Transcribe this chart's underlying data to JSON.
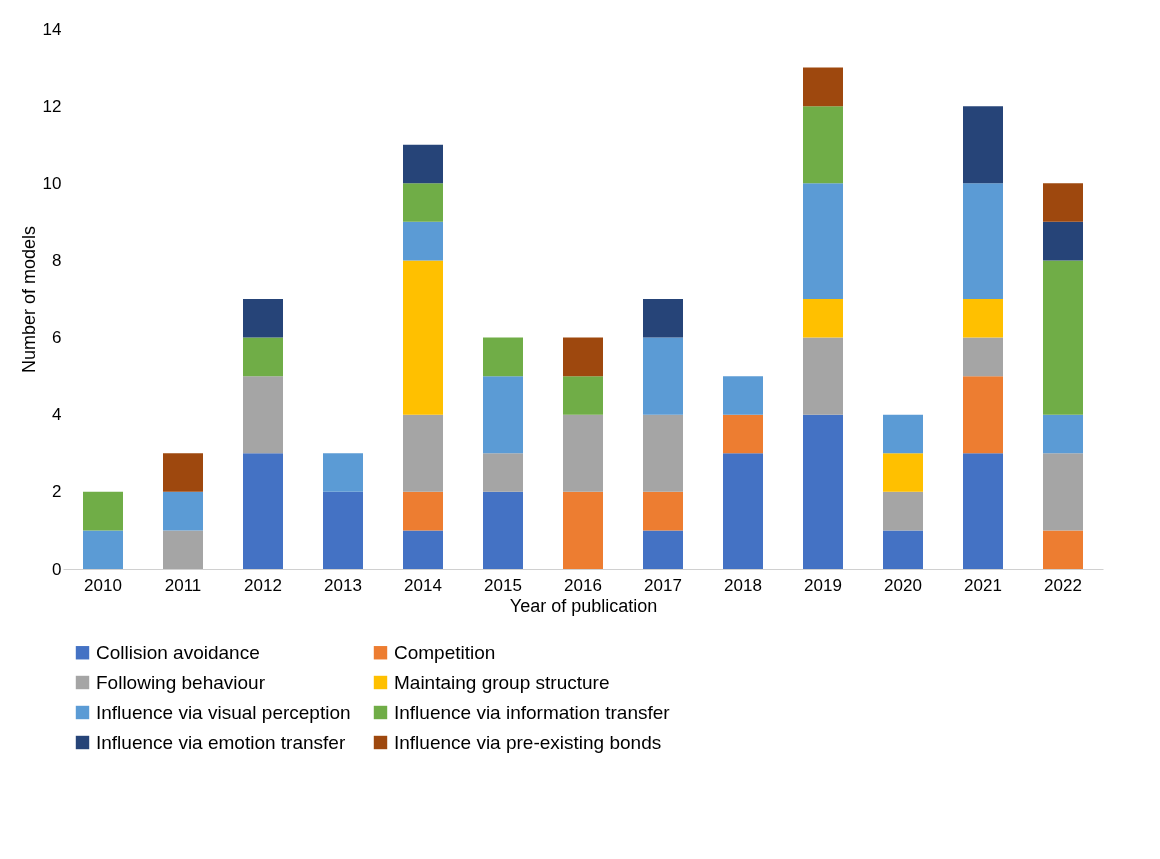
{
  "chart_data": {
    "type": "bar",
    "stacked": true,
    "xlabel": "Year of publication",
    "ylabel": "Number of models",
    "categories": [
      "2010",
      "2011",
      "2012",
      "2013",
      "2014",
      "2015",
      "2016",
      "2017",
      "2018",
      "2019",
      "2020",
      "2021",
      "2022"
    ],
    "ylim": [
      0,
      14
    ],
    "yticks": [
      0,
      2,
      4,
      6,
      8,
      10,
      12,
      14
    ],
    "grid": false,
    "legend": "bottom",
    "series": [
      {
        "name": "Collision avoidance",
        "color": "#4472c4",
        "values": [
          null,
          null,
          3,
          2,
          1,
          2,
          null,
          1,
          3,
          4,
          1,
          3,
          null
        ]
      },
      {
        "name": "Competition",
        "color": "#ed7d31",
        "values": [
          null,
          null,
          null,
          null,
          1,
          null,
          2,
          1,
          1,
          null,
          null,
          2,
          1
        ]
      },
      {
        "name": "Following behaviour",
        "color": "#a5a5a5",
        "values": [
          null,
          1,
          2,
          null,
          2,
          1,
          2,
          2,
          null,
          2,
          1,
          1,
          2
        ]
      },
      {
        "name": "Maintaing group structure",
        "color": "#ffc000",
        "values": [
          null,
          null,
          null,
          null,
          4,
          null,
          null,
          null,
          null,
          1,
          1,
          1,
          null
        ]
      },
      {
        "name": "Influence via visual perception",
        "color": "#5b9bd5",
        "values": [
          1,
          1,
          null,
          1,
          1,
          2,
          null,
          2,
          1,
          3,
          1,
          3,
          1
        ]
      },
      {
        "name": "Influence via information transfer",
        "color": "#70ad47",
        "values": [
          1,
          null,
          1,
          null,
          1,
          1,
          1,
          null,
          null,
          2,
          null,
          null,
          4
        ]
      },
      {
        "name": "Influence via emotion transfer",
        "color": "#264478",
        "values": [
          null,
          null,
          1,
          null,
          1,
          null,
          null,
          1,
          null,
          null,
          null,
          2,
          1
        ]
      },
      {
        "name": "Influence via pre-existing bonds",
        "color": "#9e480e",
        "values": [
          null,
          1,
          null,
          null,
          null,
          null,
          1,
          null,
          null,
          1,
          null,
          null,
          1
        ]
      }
    ]
  }
}
